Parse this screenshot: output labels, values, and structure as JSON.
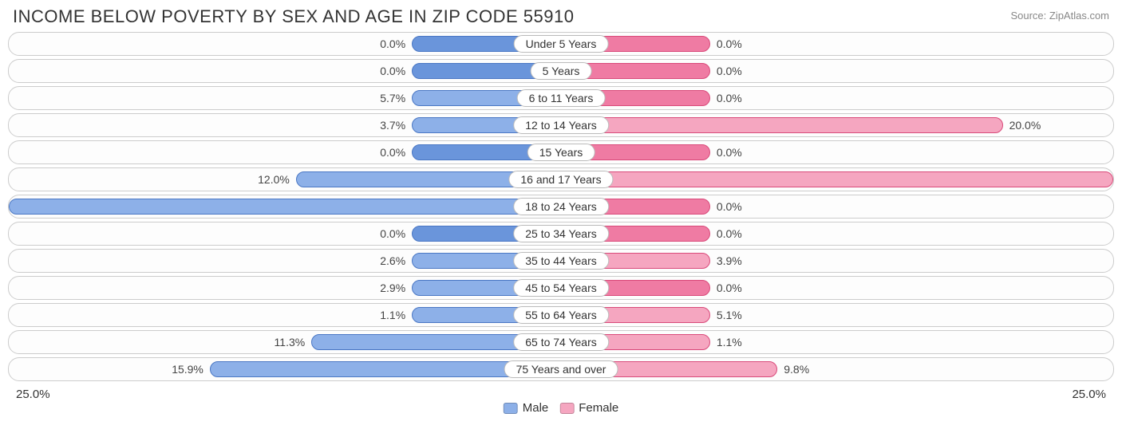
{
  "title": "INCOME BELOW POVERTY BY SEX AND AGE IN ZIP CODE 55910",
  "source": "Source: ZipAtlas.com",
  "chart": {
    "type": "diverging-bar",
    "axis_max_pct": 25.0,
    "axis_left_label": "25.0%",
    "axis_right_label": "25.0%",
    "male_bar_fill": "#8db0e8",
    "male_bar_border": "#4a77c4",
    "male_min_fill": "#6a95db",
    "female_bar_fill": "#f5a6c0",
    "female_bar_border": "#d94a7a",
    "female_min_fill": "#ef7ba3",
    "row_bg": "#fdfdfd",
    "row_border": "#cccccc",
    "label_pill_bg": "#ffffff",
    "label_pill_border": "#bbbbbb",
    "text_color": "#444444",
    "min_bar_pct_of_half": 27,
    "categories": [
      {
        "label": "Under 5 Years",
        "male": 0.0,
        "female": 0.0
      },
      {
        "label": "5 Years",
        "male": 0.0,
        "female": 0.0
      },
      {
        "label": "6 to 11 Years",
        "male": 5.7,
        "female": 0.0
      },
      {
        "label": "12 to 14 Years",
        "male": 3.7,
        "female": 20.0
      },
      {
        "label": "15 Years",
        "male": 0.0,
        "female": 0.0
      },
      {
        "label": "16 and 17 Years",
        "male": 12.0,
        "female": 25.0
      },
      {
        "label": "18 to 24 Years",
        "male": 25.0,
        "female": 0.0
      },
      {
        "label": "25 to 34 Years",
        "male": 0.0,
        "female": 0.0
      },
      {
        "label": "35 to 44 Years",
        "male": 2.6,
        "female": 3.9
      },
      {
        "label": "45 to 54 Years",
        "male": 2.9,
        "female": 0.0
      },
      {
        "label": "55 to 64 Years",
        "male": 1.1,
        "female": 5.1
      },
      {
        "label": "65 to 74 Years",
        "male": 11.3,
        "female": 1.1
      },
      {
        "label": "75 Years and over",
        "male": 15.9,
        "female": 9.8
      }
    ],
    "legend": {
      "male_label": "Male",
      "female_label": "Female"
    }
  }
}
